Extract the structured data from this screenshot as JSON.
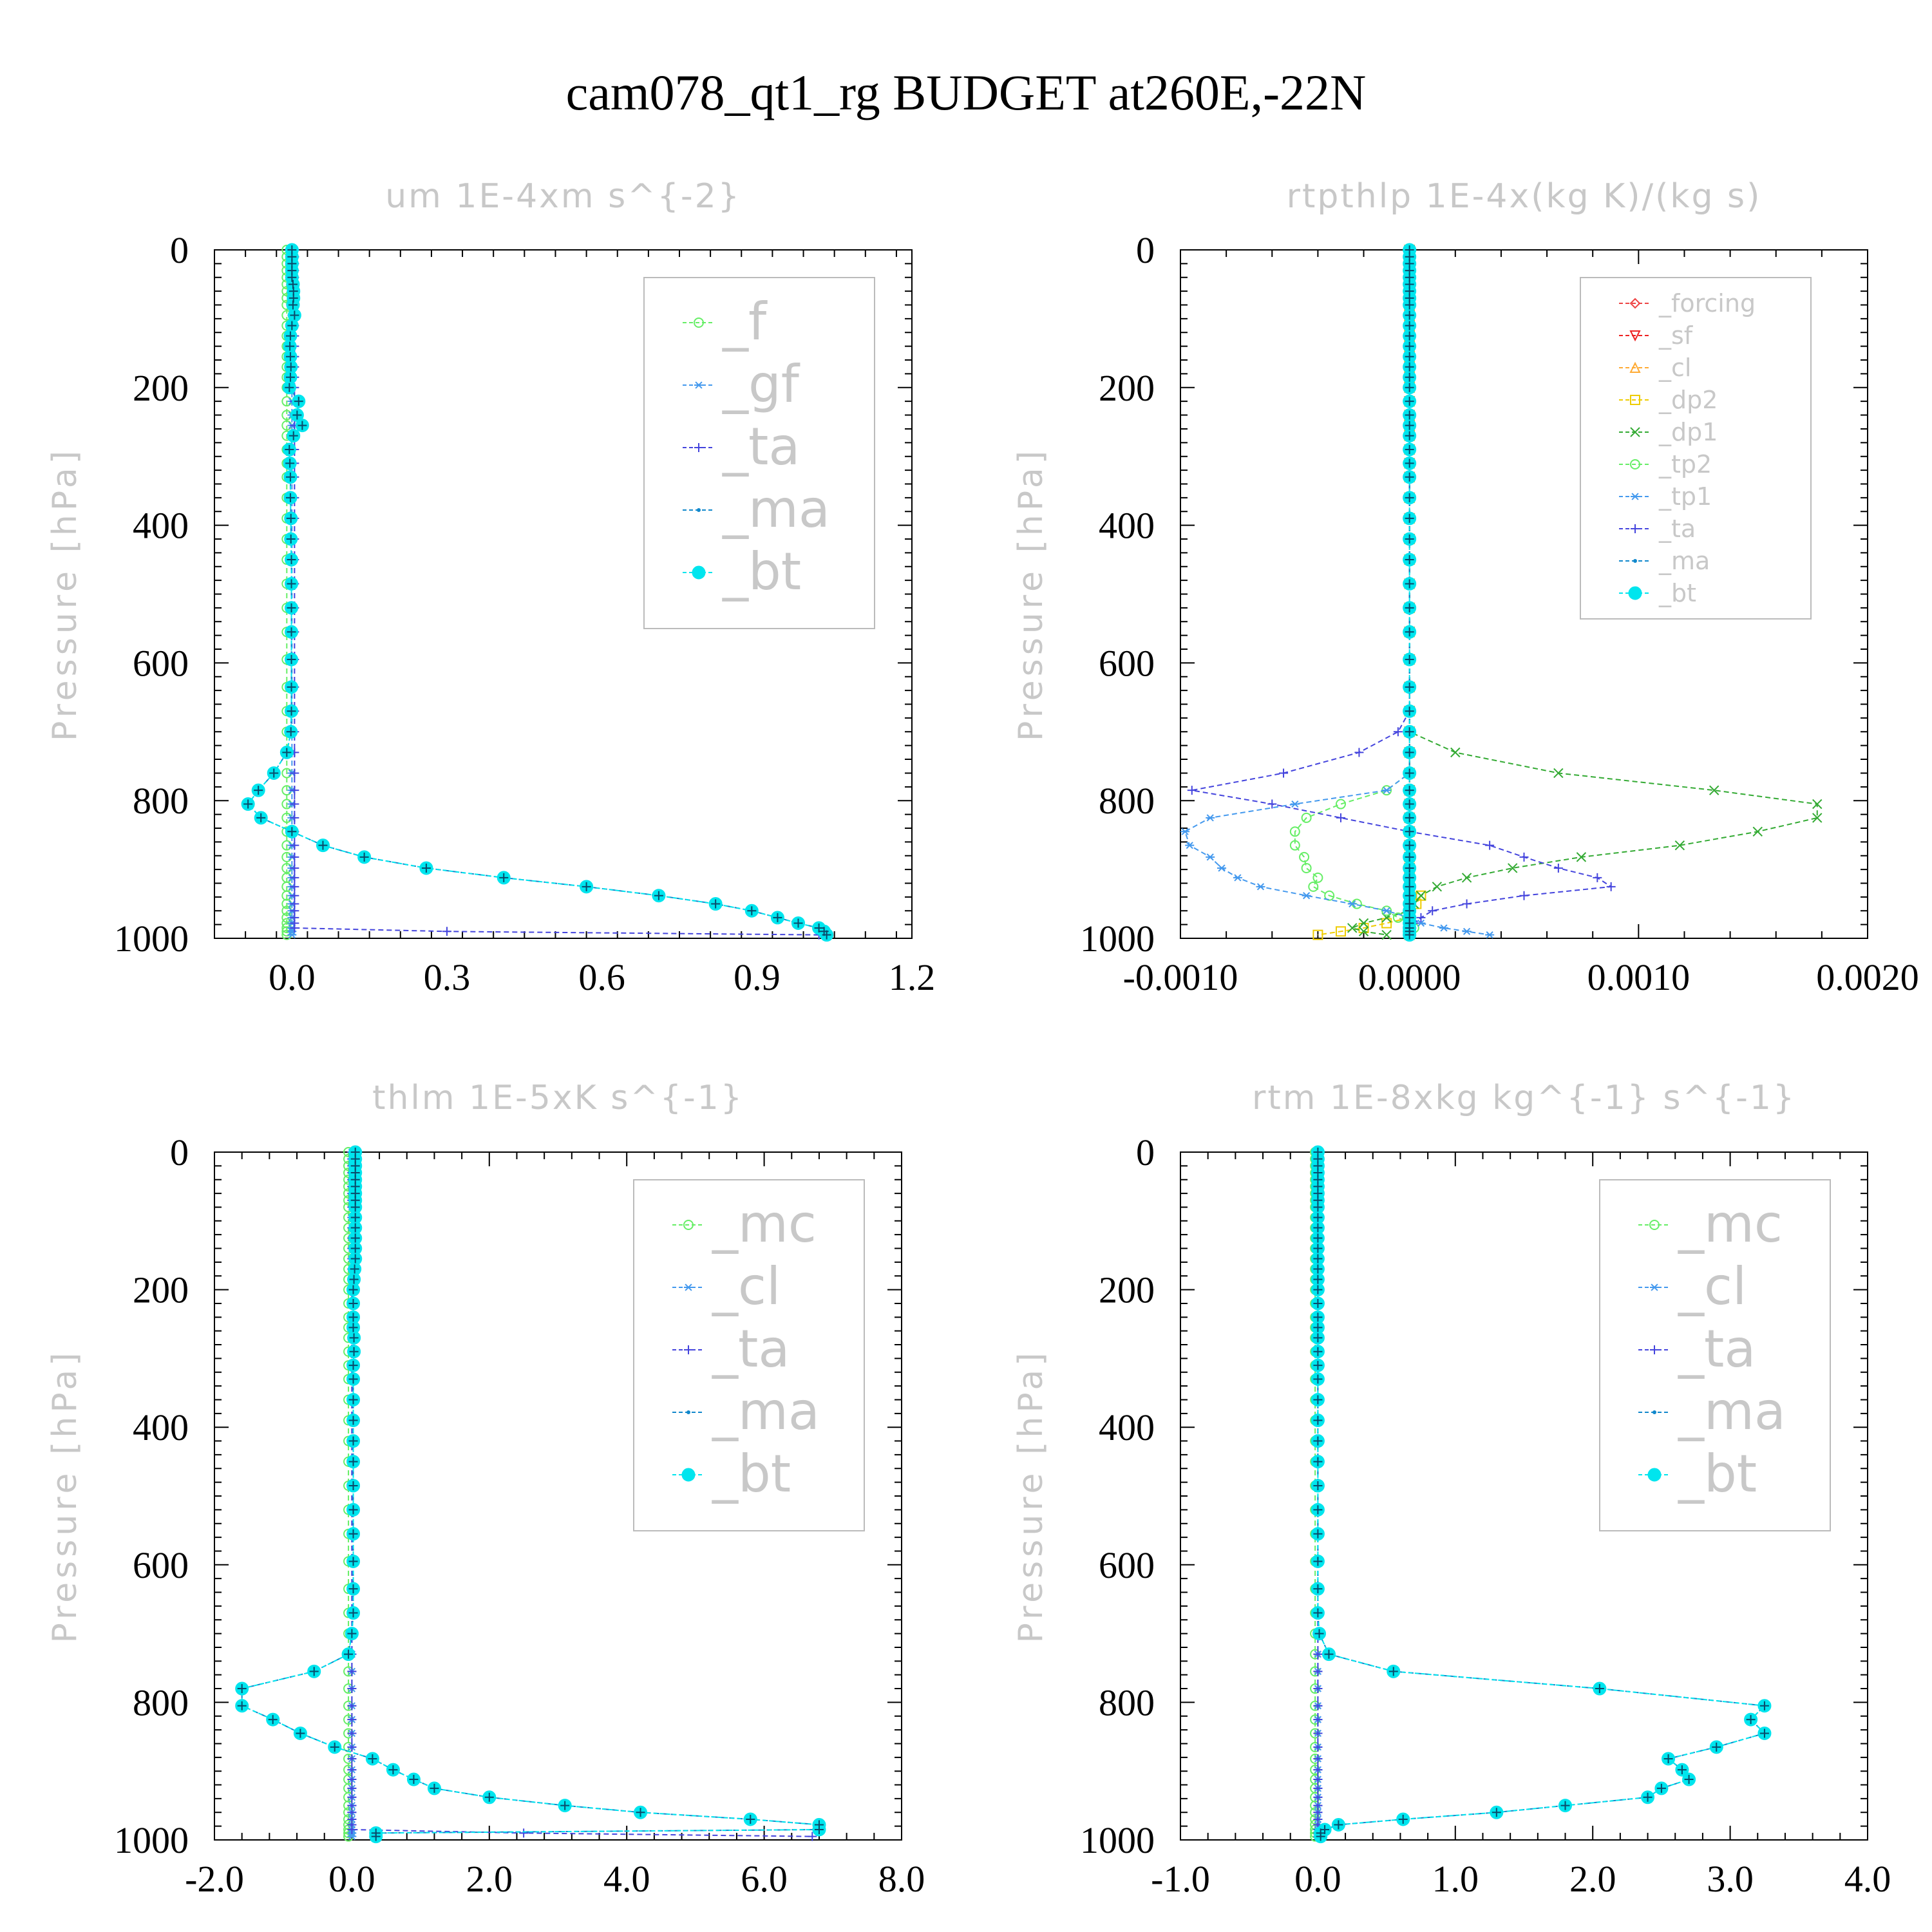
{
  "title": "cam078_qt1_rg  BUDGET at260E,-22N",
  "chart_data": [
    {
      "type": "line",
      "title": "um   1E-4xm s^{-2}",
      "ylabel": "Pressure [hPa]",
      "xlim": [
        -0.15,
        1.2
      ],
      "ylim": [
        1000,
        0
      ],
      "xticks": [
        "0.0",
        "0.3",
        "0.6",
        "0.9",
        "1.2"
      ],
      "xtick_values": [
        0,
        0.3,
        0.6,
        0.9,
        1.2
      ],
      "yticks": [
        "0",
        "200",
        "400",
        "600",
        "800",
        "1000"
      ],
      "ytick_values": [
        0,
        200,
        400,
        600,
        800,
        1000
      ],
      "legend_size": "big",
      "legend_position": "top-right",
      "levels": [
        0,
        10,
        20,
        30,
        40,
        50,
        60,
        70,
        80,
        95,
        110,
        125,
        140,
        155,
        170,
        185,
        200,
        220,
        240,
        255,
        270,
        290,
        310,
        330,
        360,
        390,
        420,
        450,
        485,
        520,
        555,
        595,
        635,
        670,
        700,
        730,
        760,
        785,
        805,
        825,
        845,
        865,
        882,
        898,
        912,
        925,
        938,
        950,
        960,
        970,
        978,
        985,
        990,
        995
      ],
      "series": [
        {
          "name": "_f",
          "color": "#66ee66",
          "marker": "circle",
          "constant": -0.01
        },
        {
          "name": "_gf",
          "color": "#4499ee",
          "marker": "star",
          "constant": 0.0
        },
        {
          "name": "_ta",
          "color": "#4444dd",
          "marker": "plus",
          "values": [
            0.005,
            0.005,
            0.005,
            0.005,
            0.005,
            0.005,
            0.005,
            0.005,
            0.005,
            0.005,
            0.005,
            0.005,
            0.005,
            0.005,
            0.005,
            0.005,
            0.005,
            0.005,
            0.005,
            0.005,
            0.005,
            0.005,
            0.005,
            0.005,
            0.005,
            0.005,
            0.005,
            0.005,
            0.005,
            0.005,
            0.005,
            0.005,
            0.005,
            0.005,
            0.005,
            0.005,
            0.005,
            0.005,
            0.005,
            0.005,
            0.005,
            0.005,
            0.005,
            0.005,
            0.005,
            0.005,
            0.005,
            0.005,
            0.005,
            0.005,
            0.005,
            0.005,
            0.3,
            1.02
          ]
        },
        {
          "name": "_ma",
          "color": "#1188cc",
          "marker": "dot",
          "same_as": "_bt"
        },
        {
          "name": "_bt",
          "color": "#00e5ee",
          "marker": "bigdot",
          "values": [
            0.0,
            0.0,
            0.0,
            0.0,
            0.0,
            0.002,
            0.003,
            0.003,
            0.002,
            0.005,
            0.0,
            -0.003,
            -0.004,
            -0.003,
            -0.002,
            -0.003,
            -0.005,
            0.013,
            0.01,
            0.02,
            0.003,
            -0.005,
            -0.004,
            -0.003,
            -0.003,
            -0.002,
            -0.002,
            -0.001,
            -0.001,
            -0.001,
            -0.001,
            -0.001,
            -0.001,
            -0.001,
            -0.002,
            -0.01,
            -0.035,
            -0.065,
            -0.085,
            -0.06,
            0.0,
            0.06,
            0.14,
            0.26,
            0.41,
            0.57,
            0.71,
            0.82,
            0.89,
            0.94,
            0.98,
            1.02,
            1.03,
            1.035
          ]
        }
      ]
    },
    {
      "type": "line",
      "title": "rtpthlp   1E-4x(kg K)/(kg s)",
      "ylabel": "Pressure [hPa]",
      "xlim": [
        -0.001,
        0.002
      ],
      "ylim": [
        1000,
        0
      ],
      "xticks": [
        "-0.0010",
        "0.0000",
        "0.0010",
        "0.0020"
      ],
      "xtick_values": [
        -0.001,
        0,
        0.001,
        0.002
      ],
      "yticks": [
        "0",
        "200",
        "400",
        "600",
        "800",
        "1000"
      ],
      "ytick_values": [
        0,
        200,
        400,
        600,
        800,
        1000
      ],
      "legend_size": "small",
      "legend_position": "top-right",
      "levels": [
        0,
        10,
        20,
        30,
        40,
        50,
        60,
        70,
        80,
        95,
        110,
        125,
        140,
        155,
        170,
        185,
        200,
        220,
        240,
        255,
        270,
        290,
        310,
        330,
        360,
        390,
        420,
        450,
        485,
        520,
        555,
        595,
        635,
        670,
        700,
        730,
        760,
        785,
        805,
        825,
        845,
        865,
        882,
        898,
        912,
        925,
        938,
        950,
        960,
        970,
        978,
        985,
        990,
        995
      ],
      "series": [
        {
          "name": "_forcing",
          "color": "#ee4444",
          "marker": "diamond",
          "constant": 0.0
        },
        {
          "name": "_sf",
          "color": "#ee2222",
          "marker": "tri-down",
          "constant": 0.0
        },
        {
          "name": "_cl",
          "color": "#ffaa33",
          "marker": "tri-up",
          "constant": 0.0
        },
        {
          "name": "_dp2",
          "color": "#eecc00",
          "marker": "square",
          "values": [
            0,
            0,
            0,
            0,
            0,
            0,
            0,
            0,
            0,
            0,
            0,
            0,
            0,
            0,
            0,
            0,
            0,
            0,
            0,
            0,
            0,
            0,
            0,
            0,
            0,
            0,
            0,
            0,
            0,
            0,
            0,
            0,
            0,
            0,
            0,
            0,
            0,
            0,
            0,
            0,
            0,
            0,
            0,
            0,
            0,
            0,
            5e-05,
            3e-05,
            0,
            0,
            -0.0001,
            -0.0002,
            -0.0003,
            -0.0004
          ]
        },
        {
          "name": "_dp1",
          "color": "#33aa33",
          "marker": "x",
          "values": [
            0,
            0,
            0,
            0,
            0,
            0,
            0,
            0,
            0,
            0,
            0,
            0,
            0,
            0,
            0,
            0,
            0,
            0,
            0,
            0,
            0,
            0,
            0,
            0,
            0,
            0,
            0,
            0,
            0,
            0,
            0,
            0,
            0,
            0,
            0,
            0.0002,
            0.00065,
            0.00133,
            0.00178,
            0.00178,
            0.00152,
            0.00118,
            0.00075,
            0.00045,
            0.00025,
            0.00012,
            5e-05,
            2e-05,
            0,
            -0.0001,
            -0.0002,
            -0.00025,
            -0.0002,
            -0.0001
          ]
        },
        {
          "name": "_tp2",
          "color": "#66ee66",
          "marker": "circle",
          "values": [
            0,
            0,
            0,
            0,
            0,
            0,
            0,
            0,
            0,
            0,
            0,
            0,
            0,
            0,
            0,
            0,
            0,
            0,
            0,
            0,
            0,
            0,
            0,
            0,
            0,
            0,
            0,
            0,
            0,
            0,
            0,
            0,
            0,
            0,
            0,
            0,
            0,
            -0.0001,
            -0.0003,
            -0.00045,
            -0.0005,
            -0.0005,
            -0.00046,
            -0.00045,
            -0.0004,
            -0.00042,
            -0.00035,
            -0.00023,
            -0.0001,
            -5e-05,
            0,
            2e-05,
            0,
            0
          ]
        },
        {
          "name": "_tp1",
          "color": "#4499ee",
          "marker": "star",
          "values": [
            0,
            0,
            0,
            0,
            0,
            0,
            0,
            0,
            0,
            0,
            0,
            0,
            0,
            0,
            0,
            0,
            0,
            0,
            0,
            0,
            0,
            0,
            0,
            0,
            0,
            0,
            0,
            0,
            0,
            0,
            0,
            0,
            0,
            0,
            0,
            0,
            0,
            -0.0001,
            -0.0005,
            -0.00087,
            -0.00098,
            -0.00096,
            -0.00087,
            -0.00082,
            -0.00075,
            -0.00065,
            -0.00045,
            -0.00025,
            -0.0001,
            0,
            5e-05,
            0.00015,
            0.00025,
            0.00035
          ]
        },
        {
          "name": "_ta",
          "color": "#4444dd",
          "marker": "plus",
          "values": [
            0,
            0,
            0,
            0,
            0,
            0,
            0,
            0,
            0,
            0,
            0,
            0,
            0,
            0,
            0,
            0,
            0,
            0,
            0,
            0,
            0,
            0,
            0,
            0,
            0,
            0,
            0,
            0,
            0,
            0,
            0,
            0,
            0,
            0,
            -5e-05,
            -0.00022,
            -0.00055,
            -0.00095,
            -0.0006,
            -0.0003,
            0.0,
            0.00035,
            0.0005,
            0.00065,
            0.00082,
            0.00088,
            0.0005,
            0.00025,
            0.0001,
            5e-05,
            2e-05,
            1e-05,
            0,
            0
          ]
        },
        {
          "name": "_ma",
          "color": "#1188cc",
          "marker": "dot",
          "constant": 0.0
        },
        {
          "name": "_bt",
          "color": "#00e5ee",
          "marker": "bigdot",
          "constant": 0.0
        }
      ]
    },
    {
      "type": "line",
      "title": "thlm   1E-5xK s^{-1}",
      "ylabel": "Pressure [hPa]",
      "xlim": [
        -2.0,
        8.0
      ],
      "ylim": [
        1000,
        0
      ],
      "xticks": [
        "-2.0",
        "0.0",
        "2.0",
        "4.0",
        "6.0",
        "8.0"
      ],
      "xtick_values": [
        -2,
        0,
        2,
        4,
        6,
        8
      ],
      "yticks": [
        "0",
        "200",
        "400",
        "600",
        "800",
        "1000"
      ],
      "ytick_values": [
        0,
        200,
        400,
        600,
        800,
        1000
      ],
      "legend_size": "big",
      "legend_position": "top-right",
      "levels": [
        0,
        10,
        20,
        30,
        40,
        50,
        60,
        70,
        80,
        95,
        110,
        125,
        140,
        155,
        170,
        185,
        200,
        220,
        240,
        255,
        270,
        290,
        310,
        330,
        360,
        390,
        420,
        450,
        485,
        520,
        555,
        595,
        635,
        670,
        700,
        730,
        755,
        780,
        805,
        825,
        845,
        865,
        882,
        898,
        912,
        925,
        938,
        950,
        960,
        970,
        978,
        985,
        990,
        995
      ],
      "series": [
        {
          "name": "_mc",
          "color": "#66ee66",
          "marker": "circle",
          "constant": -0.05
        },
        {
          "name": "_cl",
          "color": "#4499ee",
          "marker": "star",
          "constant": 0.0
        },
        {
          "name": "_ta",
          "color": "#4444dd",
          "marker": "plus",
          "values": [
            0,
            0,
            0,
            0,
            0,
            0,
            0,
            0,
            0,
            0,
            0,
            0,
            0,
            0,
            0,
            0,
            0,
            0,
            0,
            0,
            0,
            0,
            0,
            0,
            0,
            0,
            0,
            0,
            0,
            0,
            0,
            0,
            0,
            0,
            0,
            0,
            0,
            0,
            0,
            0,
            0,
            0,
            0,
            0,
            0,
            0,
            0,
            0,
            0,
            0,
            0,
            0,
            2.5,
            6.7
          ]
        },
        {
          "name": "_ma",
          "color": "#1188cc",
          "marker": "dot",
          "same_as": "_bt"
        },
        {
          "name": "_bt",
          "color": "#00e5ee",
          "marker": "bigdot",
          "values": [
            0.05,
            0.05,
            0.05,
            0.05,
            0.05,
            0.05,
            0.05,
            0.05,
            0.05,
            0.05,
            0.05,
            0.05,
            0.05,
            0.05,
            0.04,
            0.03,
            0.02,
            0.02,
            0.02,
            0.02,
            0.03,
            0.03,
            0.02,
            0.02,
            0.02,
            0.02,
            0.02,
            0.02,
            0.02,
            0.02,
            0.02,
            0.02,
            0.02,
            0.02,
            0.0,
            -0.05,
            -0.55,
            -1.6,
            -1.6,
            -1.15,
            -0.75,
            -0.25,
            0.3,
            0.6,
            0.9,
            1.2,
            2.0,
            3.1,
            4.2,
            5.8,
            6.8,
            6.8,
            0.35,
            0.35
          ]
        }
      ]
    },
    {
      "type": "line",
      "title": "rtm   1E-8xkg kg^{-1} s^{-1}",
      "ylabel": "Pressure [hPa]",
      "xlim": [
        -1.0,
        4.0
      ],
      "ylim": [
        1000,
        0
      ],
      "xticks": [
        "-1.0",
        "0.0",
        "1.0",
        "2.0",
        "3.0",
        "4.0"
      ],
      "xtick_values": [
        -1,
        0,
        1,
        2,
        3,
        4
      ],
      "yticks": [
        "0",
        "200",
        "400",
        "600",
        "800",
        "1000"
      ],
      "ytick_values": [
        0,
        200,
        400,
        600,
        800,
        1000
      ],
      "legend_size": "big",
      "legend_position": "top-right",
      "levels": [
        0,
        10,
        20,
        30,
        40,
        50,
        60,
        70,
        80,
        95,
        110,
        125,
        140,
        155,
        170,
        185,
        200,
        220,
        240,
        255,
        270,
        290,
        310,
        330,
        360,
        390,
        420,
        450,
        485,
        520,
        555,
        595,
        635,
        670,
        700,
        730,
        755,
        780,
        805,
        825,
        845,
        865,
        882,
        898,
        912,
        925,
        938,
        950,
        960,
        970,
        978,
        985,
        990,
        995
      ],
      "series": [
        {
          "name": "_mc",
          "color": "#66ee66",
          "marker": "circle",
          "constant": -0.02
        },
        {
          "name": "_cl",
          "color": "#4499ee",
          "marker": "star",
          "constant": 0.0
        },
        {
          "name": "_ta",
          "color": "#4444dd",
          "marker": "plus",
          "constant": 0.0
        },
        {
          "name": "_ma",
          "color": "#1188cc",
          "marker": "dot",
          "same_as": "_bt"
        },
        {
          "name": "_bt",
          "color": "#00e5ee",
          "marker": "bigdot",
          "values": [
            0,
            0,
            0,
            0,
            0,
            0,
            0,
            0,
            0,
            0,
            0,
            0,
            0,
            0,
            0,
            0,
            0,
            0,
            0,
            0,
            0,
            0,
            0,
            0,
            0,
            0,
            0,
            0,
            0,
            0,
            0,
            0,
            0,
            0,
            0.01,
            0.08,
            0.55,
            2.05,
            3.25,
            3.15,
            3.25,
            2.9,
            2.55,
            2.65,
            2.7,
            2.5,
            2.4,
            1.8,
            1.3,
            0.62,
            0.15,
            0.05,
            0.02,
            0.02
          ]
        }
      ]
    }
  ]
}
